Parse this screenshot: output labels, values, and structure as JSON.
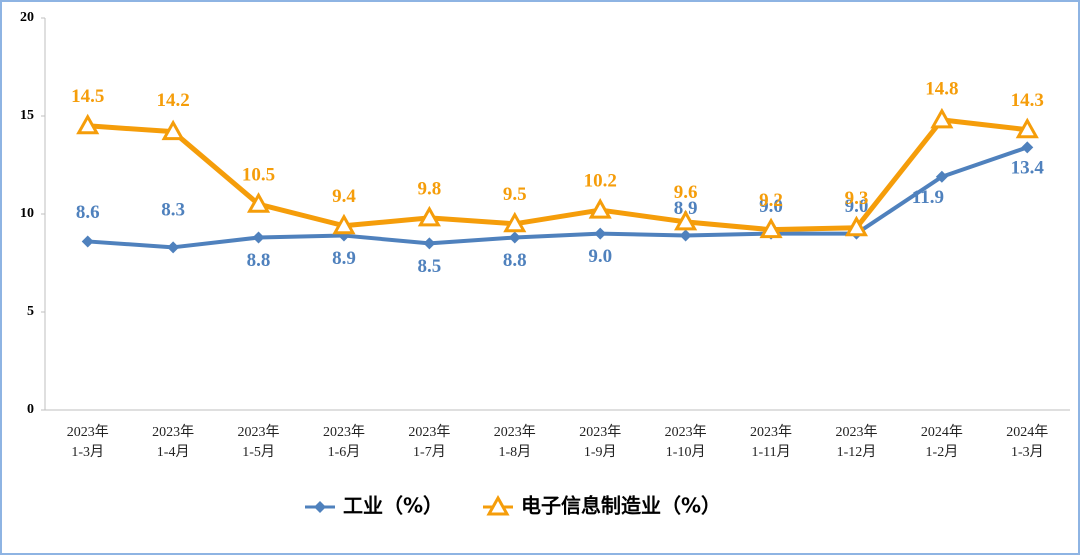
{
  "chart_data": {
    "type": "line",
    "categories": [
      [
        "2023年",
        "1-3月"
      ],
      [
        "2023年",
        "1-4月"
      ],
      [
        "2023年",
        "1-5月"
      ],
      [
        "2023年",
        "1-6月"
      ],
      [
        "2023年",
        "1-7月"
      ],
      [
        "2023年",
        "1-8月"
      ],
      [
        "2023年",
        "1-9月"
      ],
      [
        "2023年",
        "1-10月"
      ],
      [
        "2023年",
        "1-11月"
      ],
      [
        "2023年",
        "1-12月"
      ],
      [
        "2024年",
        "1-2月"
      ],
      [
        "2024年",
        "1-3月"
      ]
    ],
    "series": [
      {
        "name": "工业（%）",
        "color": "#4f81bd",
        "marker": "diamond",
        "values": [
          8.6,
          8.3,
          8.8,
          8.9,
          8.5,
          8.8,
          9.0,
          8.9,
          9.0,
          9.0,
          11.9,
          13.4
        ],
        "value_labels": [
          "8.6",
          "8.3",
          "8.8",
          "8.9",
          "8.5",
          "8.8",
          "9.0",
          "8.9",
          "9.0",
          "9.0",
          "11.9",
          "13.4"
        ]
      },
      {
        "name": "电子信息制造业（%）",
        "color": "#f59d0a",
        "marker": "triangle",
        "values": [
          14.5,
          14.2,
          10.5,
          9.4,
          9.8,
          9.5,
          10.2,
          9.6,
          9.2,
          9.3,
          14.8,
          14.3
        ],
        "value_labels": [
          "14.5",
          "14.2",
          "10.5",
          "9.4",
          "9.8",
          "9.5",
          "10.2",
          "9.6",
          "9.2",
          "9.3",
          "14.8",
          "14.3"
        ]
      }
    ],
    "ylim": [
      0,
      20
    ],
    "yticks": [
      0,
      5,
      10,
      15,
      20
    ],
    "grid": false,
    "legend": "bottom"
  }
}
